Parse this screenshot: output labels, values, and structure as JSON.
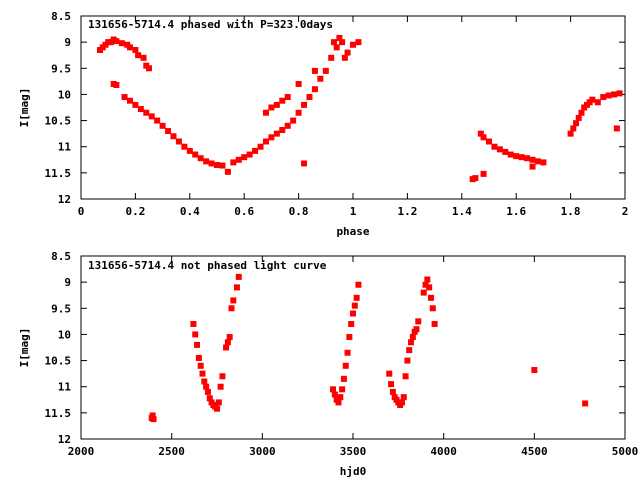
{
  "chart_data": [
    {
      "type": "scatter",
      "title": "131656-5714.4 phased with P=323.0days",
      "xlabel": "phase",
      "ylabel": "I[mag]",
      "xlim": [
        0,
        2
      ],
      "ylim": [
        8.5,
        12
      ],
      "y_inverted": true,
      "grid": false,
      "xticks": [
        "0",
        "0.2",
        "0.4",
        "0.6",
        "0.8",
        "1",
        "1.2",
        "1.4",
        "1.6",
        "1.8",
        "2"
      ],
      "yticks": [
        "8.5",
        "9",
        "9.5",
        "10",
        "10.5",
        "11",
        "11.5",
        "12"
      ],
      "marker_color": "#ff0000",
      "series": [
        {
          "points": [
            [
              0.07,
              9.15
            ],
            [
              0.08,
              9.1
            ],
            [
              0.09,
              9.05
            ],
            [
              0.1,
              9.0
            ],
            [
              0.11,
              9.0
            ],
            [
              0.12,
              8.95
            ],
            [
              0.13,
              8.98
            ],
            [
              0.15,
              9.02
            ],
            [
              0.17,
              9.05
            ],
            [
              0.18,
              9.1
            ],
            [
              0.2,
              9.15
            ],
            [
              0.21,
              9.25
            ],
            [
              0.23,
              9.3
            ],
            [
              0.24,
              9.45
            ],
            [
              0.25,
              9.5
            ],
            [
              0.12,
              9.8
            ],
            [
              0.13,
              9.82
            ],
            [
              0.16,
              10.05
            ],
            [
              0.18,
              10.12
            ],
            [
              0.2,
              10.2
            ],
            [
              0.22,
              10.28
            ],
            [
              0.24,
              10.35
            ],
            [
              0.26,
              10.42
            ],
            [
              0.28,
              10.5
            ],
            [
              0.3,
              10.6
            ],
            [
              0.32,
              10.7
            ],
            [
              0.34,
              10.8
            ],
            [
              0.36,
              10.9
            ],
            [
              0.38,
              11.0
            ],
            [
              0.4,
              11.08
            ],
            [
              0.42,
              11.15
            ],
            [
              0.44,
              11.22
            ],
            [
              0.46,
              11.28
            ],
            [
              0.48,
              11.32
            ],
            [
              0.5,
              11.35
            ],
            [
              0.52,
              11.36
            ],
            [
              0.54,
              11.48
            ],
            [
              0.56,
              11.3
            ],
            [
              0.58,
              11.25
            ],
            [
              0.6,
              11.2
            ],
            [
              0.62,
              11.15
            ],
            [
              0.64,
              11.08
            ],
            [
              0.66,
              11.0
            ],
            [
              0.68,
              10.9
            ],
            [
              0.7,
              10.82
            ],
            [
              0.72,
              10.75
            ],
            [
              0.74,
              10.68
            ],
            [
              0.76,
              10.6
            ],
            [
              0.78,
              10.5
            ],
            [
              0.8,
              10.35
            ],
            [
              0.82,
              10.2
            ],
            [
              0.84,
              10.05
            ],
            [
              0.86,
              9.9
            ],
            [
              0.88,
              9.7
            ],
            [
              0.9,
              9.55
            ],
            [
              0.92,
              9.3
            ],
            [
              0.94,
              9.1
            ],
            [
              0.96,
              9.0
            ],
            [
              0.68,
              10.35
            ],
            [
              0.7,
              10.25
            ],
            [
              0.72,
              10.2
            ],
            [
              0.74,
              10.12
            ],
            [
              0.76,
              10.05
            ],
            [
              0.8,
              9.8
            ],
            [
              0.82,
              11.32
            ],
            [
              0.86,
              9.55
            ],
            [
              0.93,
              9.0
            ],
            [
              0.95,
              8.92
            ],
            [
              0.97,
              9.3
            ],
            [
              0.98,
              9.2
            ],
            [
              1.0,
              9.05
            ],
            [
              1.02,
              9.0
            ],
            [
              1.44,
              11.62
            ],
            [
              1.45,
              11.6
            ],
            [
              1.48,
              11.52
            ],
            [
              1.47,
              10.75
            ],
            [
              1.48,
              10.82
            ],
            [
              1.5,
              10.9
            ],
            [
              1.52,
              11.0
            ],
            [
              1.54,
              11.05
            ],
            [
              1.56,
              11.1
            ],
            [
              1.58,
              11.15
            ],
            [
              1.6,
              11.18
            ],
            [
              1.62,
              11.2
            ],
            [
              1.64,
              11.22
            ],
            [
              1.66,
              11.25
            ],
            [
              1.68,
              11.28
            ],
            [
              1.7,
              11.3
            ],
            [
              1.66,
              11.38
            ],
            [
              1.8,
              10.75
            ],
            [
              1.81,
              10.65
            ],
            [
              1.82,
              10.55
            ],
            [
              1.83,
              10.45
            ],
            [
              1.84,
              10.35
            ],
            [
              1.85,
              10.25
            ],
            [
              1.86,
              10.2
            ],
            [
              1.87,
              10.15
            ],
            [
              1.88,
              10.1
            ],
            [
              1.9,
              10.15
            ],
            [
              1.92,
              10.05
            ],
            [
              1.94,
              10.02
            ],
            [
              1.96,
              10.0
            ],
            [
              1.98,
              9.98
            ],
            [
              1.97,
              10.65
            ]
          ]
        }
      ]
    },
    {
      "type": "scatter",
      "title": "131656-5714.4 not phased light curve",
      "xlabel": "hjd0",
      "ylabel": "I[mag]",
      "xlim": [
        2000,
        5000
      ],
      "ylim": [
        8.5,
        12
      ],
      "y_inverted": true,
      "grid": false,
      "xticks": [
        "2000",
        "2500",
        "3000",
        "3500",
        "4000",
        "4500",
        "5000"
      ],
      "yticks": [
        "8.5",
        "9",
        "9.5",
        "10",
        "10.5",
        "11",
        "11.5",
        "12"
      ],
      "marker_color": "#ff0000",
      "series": [
        {
          "points": [
            [
              2390,
              11.6
            ],
            [
              2395,
              11.55
            ],
            [
              2400,
              11.62
            ],
            [
              2620,
              9.8
            ],
            [
              2630,
              10.0
            ],
            [
              2640,
              10.2
            ],
            [
              2650,
              10.45
            ],
            [
              2660,
              10.6
            ],
            [
              2670,
              10.75
            ],
            [
              2680,
              10.9
            ],
            [
              2690,
              11.0
            ],
            [
              2700,
              11.1
            ],
            [
              2710,
              11.22
            ],
            [
              2720,
              11.3
            ],
            [
              2730,
              11.35
            ],
            [
              2740,
              11.38
            ],
            [
              2750,
              11.42
            ],
            [
              2760,
              11.3
            ],
            [
              2770,
              11.0
            ],
            [
              2780,
              10.8
            ],
            [
              2800,
              10.25
            ],
            [
              2810,
              10.15
            ],
            [
              2820,
              10.05
            ],
            [
              2830,
              9.5
            ],
            [
              2840,
              9.35
            ],
            [
              2860,
              9.1
            ],
            [
              2870,
              8.9
            ],
            [
              3390,
              11.05
            ],
            [
              3400,
              11.15
            ],
            [
              3410,
              11.25
            ],
            [
              3420,
              11.3
            ],
            [
              3430,
              11.2
            ],
            [
              3440,
              11.05
            ],
            [
              3450,
              10.85
            ],
            [
              3460,
              10.6
            ],
            [
              3470,
              10.35
            ],
            [
              3480,
              10.05
            ],
            [
              3490,
              9.8
            ],
            [
              3500,
              9.6
            ],
            [
              3510,
              9.45
            ],
            [
              3520,
              9.3
            ],
            [
              3530,
              9.05
            ],
            [
              3700,
              10.75
            ],
            [
              3710,
              10.95
            ],
            [
              3720,
              11.1
            ],
            [
              3730,
              11.2
            ],
            [
              3740,
              11.25
            ],
            [
              3750,
              11.3
            ],
            [
              3760,
              11.35
            ],
            [
              3770,
              11.3
            ],
            [
              3780,
              11.2
            ],
            [
              3790,
              10.8
            ],
            [
              3800,
              10.5
            ],
            [
              3810,
              10.3
            ],
            [
              3820,
              10.15
            ],
            [
              3830,
              10.05
            ],
            [
              3840,
              9.95
            ],
            [
              3850,
              9.9
            ],
            [
              3860,
              9.75
            ],
            [
              3890,
              9.2
            ],
            [
              3900,
              9.05
            ],
            [
              3910,
              8.95
            ],
            [
              3920,
              9.1
            ],
            [
              3930,
              9.3
            ],
            [
              3940,
              9.5
            ],
            [
              3950,
              9.8
            ],
            [
              4500,
              10.68
            ],
            [
              4780,
              11.32
            ]
          ]
        }
      ]
    }
  ]
}
